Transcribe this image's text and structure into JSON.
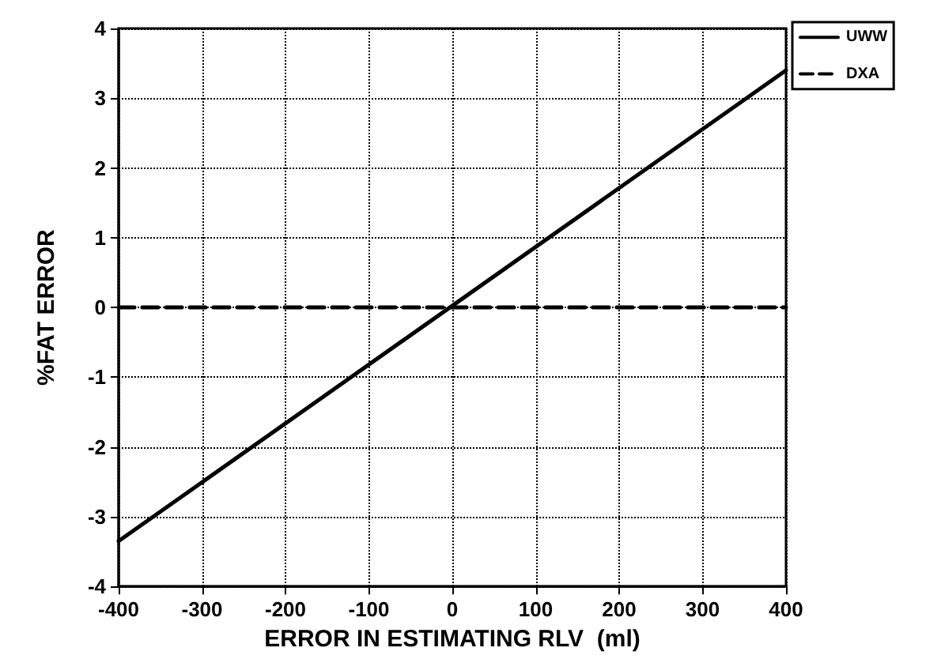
{
  "chart_data": {
    "type": "line",
    "xlabel": "ERROR IN ESTIMATING RLV  (ml)",
    "ylabel": "%FAT ERROR",
    "x": [
      -400,
      400
    ],
    "series": [
      {
        "name": "UWW",
        "color": "#000000",
        "values": [
          -3.35,
          3.4
        ],
        "line_style": "solid"
      },
      {
        "name": "DXA",
        "color": "#000000",
        "values": [
          0,
          0
        ],
        "line_style": "dashed"
      }
    ],
    "xlim": [
      -400,
      400
    ],
    "xticks": [
      -400,
      -300,
      -200,
      -100,
      0,
      100,
      200,
      300,
      400
    ],
    "ylim": [
      -4,
      4
    ],
    "yticks": [
      -4,
      -3,
      -2,
      -1,
      0,
      1,
      2,
      3,
      4
    ],
    "grid": true,
    "legend": "top right",
    "marker": "none"
  }
}
